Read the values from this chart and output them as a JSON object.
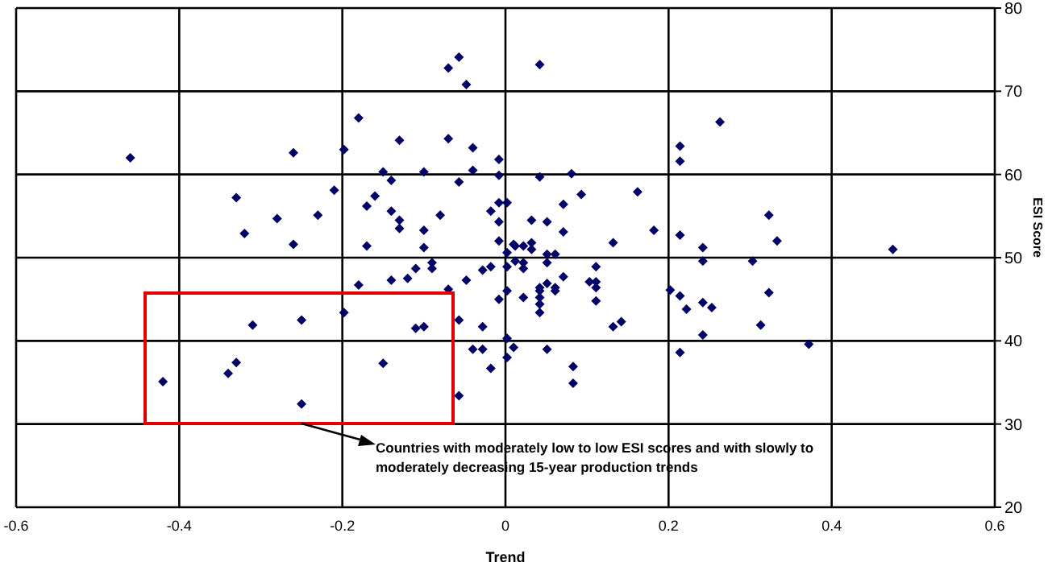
{
  "chart_data": {
    "type": "scatter",
    "xlabel": "Trend",
    "ylabel": "ESI Score",
    "xlim": [
      -0.6,
      0.6
    ],
    "xticks": [
      -0.6,
      -0.4,
      -0.2,
      0,
      0.2,
      0.4,
      0.6
    ],
    "ylim": [
      20,
      80
    ],
    "yticks": [
      20,
      30,
      40,
      50,
      60,
      70,
      80
    ],
    "grid": true,
    "marker": "diamond",
    "annotations": [
      "Countries with moderately low to low ESI scores and with slowly to moderately decreasing 15-year production trends"
    ],
    "series": [
      {
        "color": "#000066",
        "x": [
          -0.46,
          -0.26,
          -0.198,
          -0.18,
          -0.13,
          -0.07,
          -0.057,
          -0.048,
          -0.07,
          -0.04,
          -0.008,
          -0.15,
          -0.14,
          -0.1,
          -0.04,
          -0.057,
          -0.008,
          -0.33,
          -0.21,
          -0.16,
          -0.17,
          -0.14,
          -0.13,
          -0.28,
          -0.23,
          -0.08,
          -0.018,
          -0.008,
          0.002,
          -0.008,
          -0.32,
          -0.26,
          -0.17,
          -0.13,
          -0.1,
          -0.1,
          -0.008,
          0.002,
          0.01,
          -0.11,
          -0.09,
          -0.09,
          -0.028,
          -0.018,
          0.002,
          0.042,
          0.263,
          0.214,
          0.214,
          0.042,
          0.081,
          0.093,
          0.071,
          0.162,
          0.032,
          0.051,
          0.071,
          0.182,
          0.214,
          0.323,
          0.333,
          0.475,
          0.132,
          0.012,
          0.022,
          0.032,
          0.032,
          0.051,
          0.061,
          0.051,
          0.242,
          0.242,
          0.303,
          0.111,
          0.012,
          0.022,
          0.022,
          -0.18,
          -0.14,
          -0.12,
          -0.07,
          -0.048,
          0.002,
          -0.008,
          -0.198,
          -0.25,
          -0.31,
          -0.11,
          -0.1,
          -0.057,
          -0.028,
          0.002,
          -0.04,
          -0.028,
          0.01,
          0.002,
          -0.018,
          -0.15,
          -0.33,
          -0.34,
          -0.42,
          -0.25,
          -0.057,
          0.071,
          0.042,
          0.051,
          0.061,
          0.061,
          0.042,
          0.022,
          0.042,
          0.042,
          0.042,
          0.103,
          0.111,
          0.111,
          0.111,
          0.132,
          0.142,
          0.051,
          0.083,
          0.083,
          0.202,
          0.214,
          0.222,
          0.242,
          0.253,
          0.242,
          0.214,
          0.323,
          0.313,
          0.372
        ],
        "values": [
          62.0,
          62.6,
          63.0,
          66.8,
          64.1,
          72.8,
          74.1,
          70.8,
          64.3,
          63.2,
          61.8,
          60.3,
          59.3,
          60.3,
          60.5,
          59.1,
          59.9,
          57.2,
          58.1,
          57.4,
          56.2,
          55.6,
          54.5,
          54.7,
          55.1,
          55.1,
          55.6,
          56.6,
          56.6,
          54.3,
          52.9,
          51.6,
          51.4,
          53.5,
          53.3,
          51.2,
          52.0,
          50.6,
          51.6,
          48.7,
          49.4,
          48.7,
          48.5,
          48.9,
          48.9,
          73.2,
          66.3,
          63.4,
          61.6,
          59.7,
          60.1,
          57.6,
          56.4,
          57.9,
          54.5,
          54.3,
          53.1,
          53.3,
          52.7,
          55.1,
          52.0,
          51.0,
          51.8,
          51.4,
          51.4,
          51.8,
          51.0,
          50.4,
          50.4,
          49.4,
          51.2,
          49.6,
          49.6,
          48.9,
          49.6,
          49.4,
          48.7,
          46.7,
          47.3,
          47.5,
          46.2,
          47.3,
          46.0,
          45.0,
          43.4,
          42.5,
          41.9,
          41.5,
          41.7,
          42.5,
          41.7,
          40.3,
          39.0,
          39.0,
          39.2,
          38.0,
          36.7,
          37.3,
          37.4,
          36.1,
          35.1,
          32.4,
          33.4,
          47.7,
          46.4,
          46.9,
          46.4,
          46.0,
          46.0,
          45.2,
          45.2,
          44.4,
          43.4,
          47.1,
          47.1,
          46.4,
          44.8,
          41.7,
          42.3,
          39.0,
          36.9,
          34.9,
          46.1,
          45.4,
          43.8,
          44.6,
          44.0,
          40.7,
          38.6,
          45.8,
          41.9,
          39.6
        ]
      }
    ]
  }
}
